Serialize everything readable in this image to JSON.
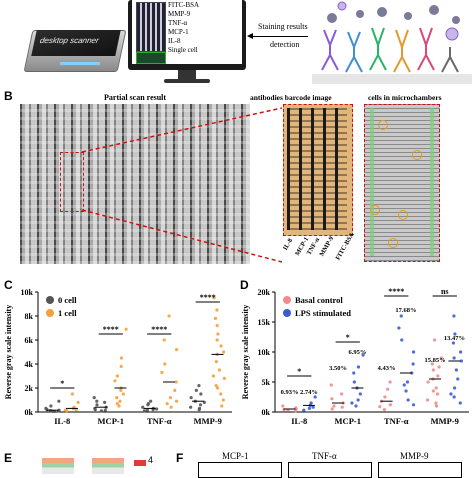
{
  "panel_A": {
    "scanner_label": "desktop scanner",
    "monitor_list": [
      "FITC-BSA",
      "MMP-9",
      "TNF-α",
      "MCP-1",
      "IL-8",
      "Single cell"
    ],
    "staining_label_line1": "Staining results",
    "staining_label_line2": "detection"
  },
  "panel_B": {
    "letter": "B",
    "partial_scan_title": "Partial scan result",
    "barcode_title": "antibodies barcode image",
    "microchamber_title": "cells in microchambers",
    "barcode_labels": [
      "IL-8",
      "MCP-1",
      "TNF-α",
      "MMP-9",
      "FITC-BSA"
    ]
  },
  "panel_C": {
    "letter": "C",
    "ylabel": "Reverse gray scale intensity",
    "yticks": [
      "0k",
      "2k",
      "4k",
      "6k",
      "8k",
      "10k"
    ],
    "legend": [
      "0 cell",
      "1 cell"
    ],
    "significance": [
      "*",
      "****",
      "****",
      "****"
    ],
    "categories": [
      "IL-8",
      "MCP-1",
      "TNF-α",
      "MMP-9"
    ],
    "colors": {
      "zero_cell": "#555555",
      "one_cell": "#f5a03a"
    }
  },
  "panel_D": {
    "letter": "D",
    "ylabel": "Reverse gray scale intensity",
    "yticks": [
      "0k",
      "5k",
      "10k",
      "15k",
      "20k"
    ],
    "legend": [
      "Basal control",
      "LPS stimulated"
    ],
    "significance": [
      "*",
      "*",
      "****",
      "ns"
    ],
    "percent_labels": [
      "0.93%",
      "2.74%",
      "3.50%",
      "6.95%",
      "4.43%",
      "17.68%",
      "15.85%",
      "13.47%"
    ],
    "categories": [
      "IL-8",
      "MCP-1",
      "TNF-α",
      "MMP-9"
    ],
    "colors": {
      "basal": "#f28a8a",
      "lps": "#3b5bd6"
    }
  },
  "panel_E": {
    "letter": "E",
    "legend_value": "4"
  },
  "panel_F": {
    "letter": "F",
    "titles": [
      "MCP-1",
      "TNF-α",
      "MMP-9"
    ]
  },
  "chart_data": [
    {
      "type": "scatter",
      "title": "",
      "ylabel": "Reverse gray scale intensity",
      "categories": [
        "IL-8",
        "MCP-1",
        "TNF-α",
        "MMP-9"
      ],
      "ylim": [
        0,
        10000
      ],
      "series": [
        {
          "name": "0 cell",
          "values": [
            [
              80,
              150,
              300,
              500,
              900,
              200,
              120,
              60,
              40
            ],
            [
              200,
              400,
              800,
              1200,
              600,
              300,
              150,
              900,
              100
            ],
            [
              150,
              300,
              600,
              200,
              900,
              400,
              100,
              250,
              700
            ],
            [
              300,
              600,
              1200,
              1800,
              800,
              400,
              200,
              1500,
              900,
              2200
            ]
          ]
        },
        {
          "name": "1 cell",
          "values": [
            [
              100,
              200,
              400,
              800,
              1500,
              300,
              150
            ],
            [
              500,
              1500,
              3000,
              4500,
              6900,
              2000,
              900,
              1200,
              2600,
              3800,
              700,
              1800
            ],
            [
              400,
              1200,
              2500,
              4000,
              6000,
              8000,
              1800,
              900,
              3300,
              5200,
              700
            ],
            [
              1000,
              2000,
              3500,
              5000,
              6500,
              8500,
              9500,
              1500,
              2800,
              4200,
              6000,
              7200,
              500,
              3000,
              4800,
              5500,
              2200,
              7800
            ]
          ]
        }
      ],
      "legend": "top-left"
    },
    {
      "type": "scatter",
      "title": "",
      "ylabel": "Reverse gray scale intensity",
      "categories": [
        "IL-8",
        "MCP-1",
        "TNF-α",
        "MMP-9"
      ],
      "ylim": [
        0,
        20000
      ],
      "series": [
        {
          "name": "Basal control",
          "values": [
            [
              200,
              500,
              1000,
              300,
              700,
              400
            ],
            [
              500,
              1500,
              3000,
              4500,
              1000,
              2200,
              800
            ],
            [
              400,
              1200,
              2500,
              5000,
              3800,
              900,
              1800
            ],
            [
              1000,
              3000,
              5000,
              7000,
              9000,
              2000,
              4000,
              6000,
              8000,
              1500,
              3500,
              5500,
              7500,
              12000
            ]
          ]
        },
        {
          "name": "LPS stimulated",
          "values": [
            [
              300,
              800,
              1500,
              2500,
              600,
              1100
            ],
            [
              1000,
              3000,
              5000,
              7500,
              9500,
              2000,
              4000,
              6500,
              1500
            ],
            [
              2000,
              5000,
              8000,
              12000,
              16000,
              3500,
              6500,
              10000,
              14000,
              1200,
              4500
            ],
            [
              1500,
              4000,
              7000,
              10000,
              13000,
              16000,
              3000,
              5500,
              8500,
              11500,
              2500,
              9000
            ]
          ]
        }
      ],
      "legend": "top-left"
    }
  ]
}
